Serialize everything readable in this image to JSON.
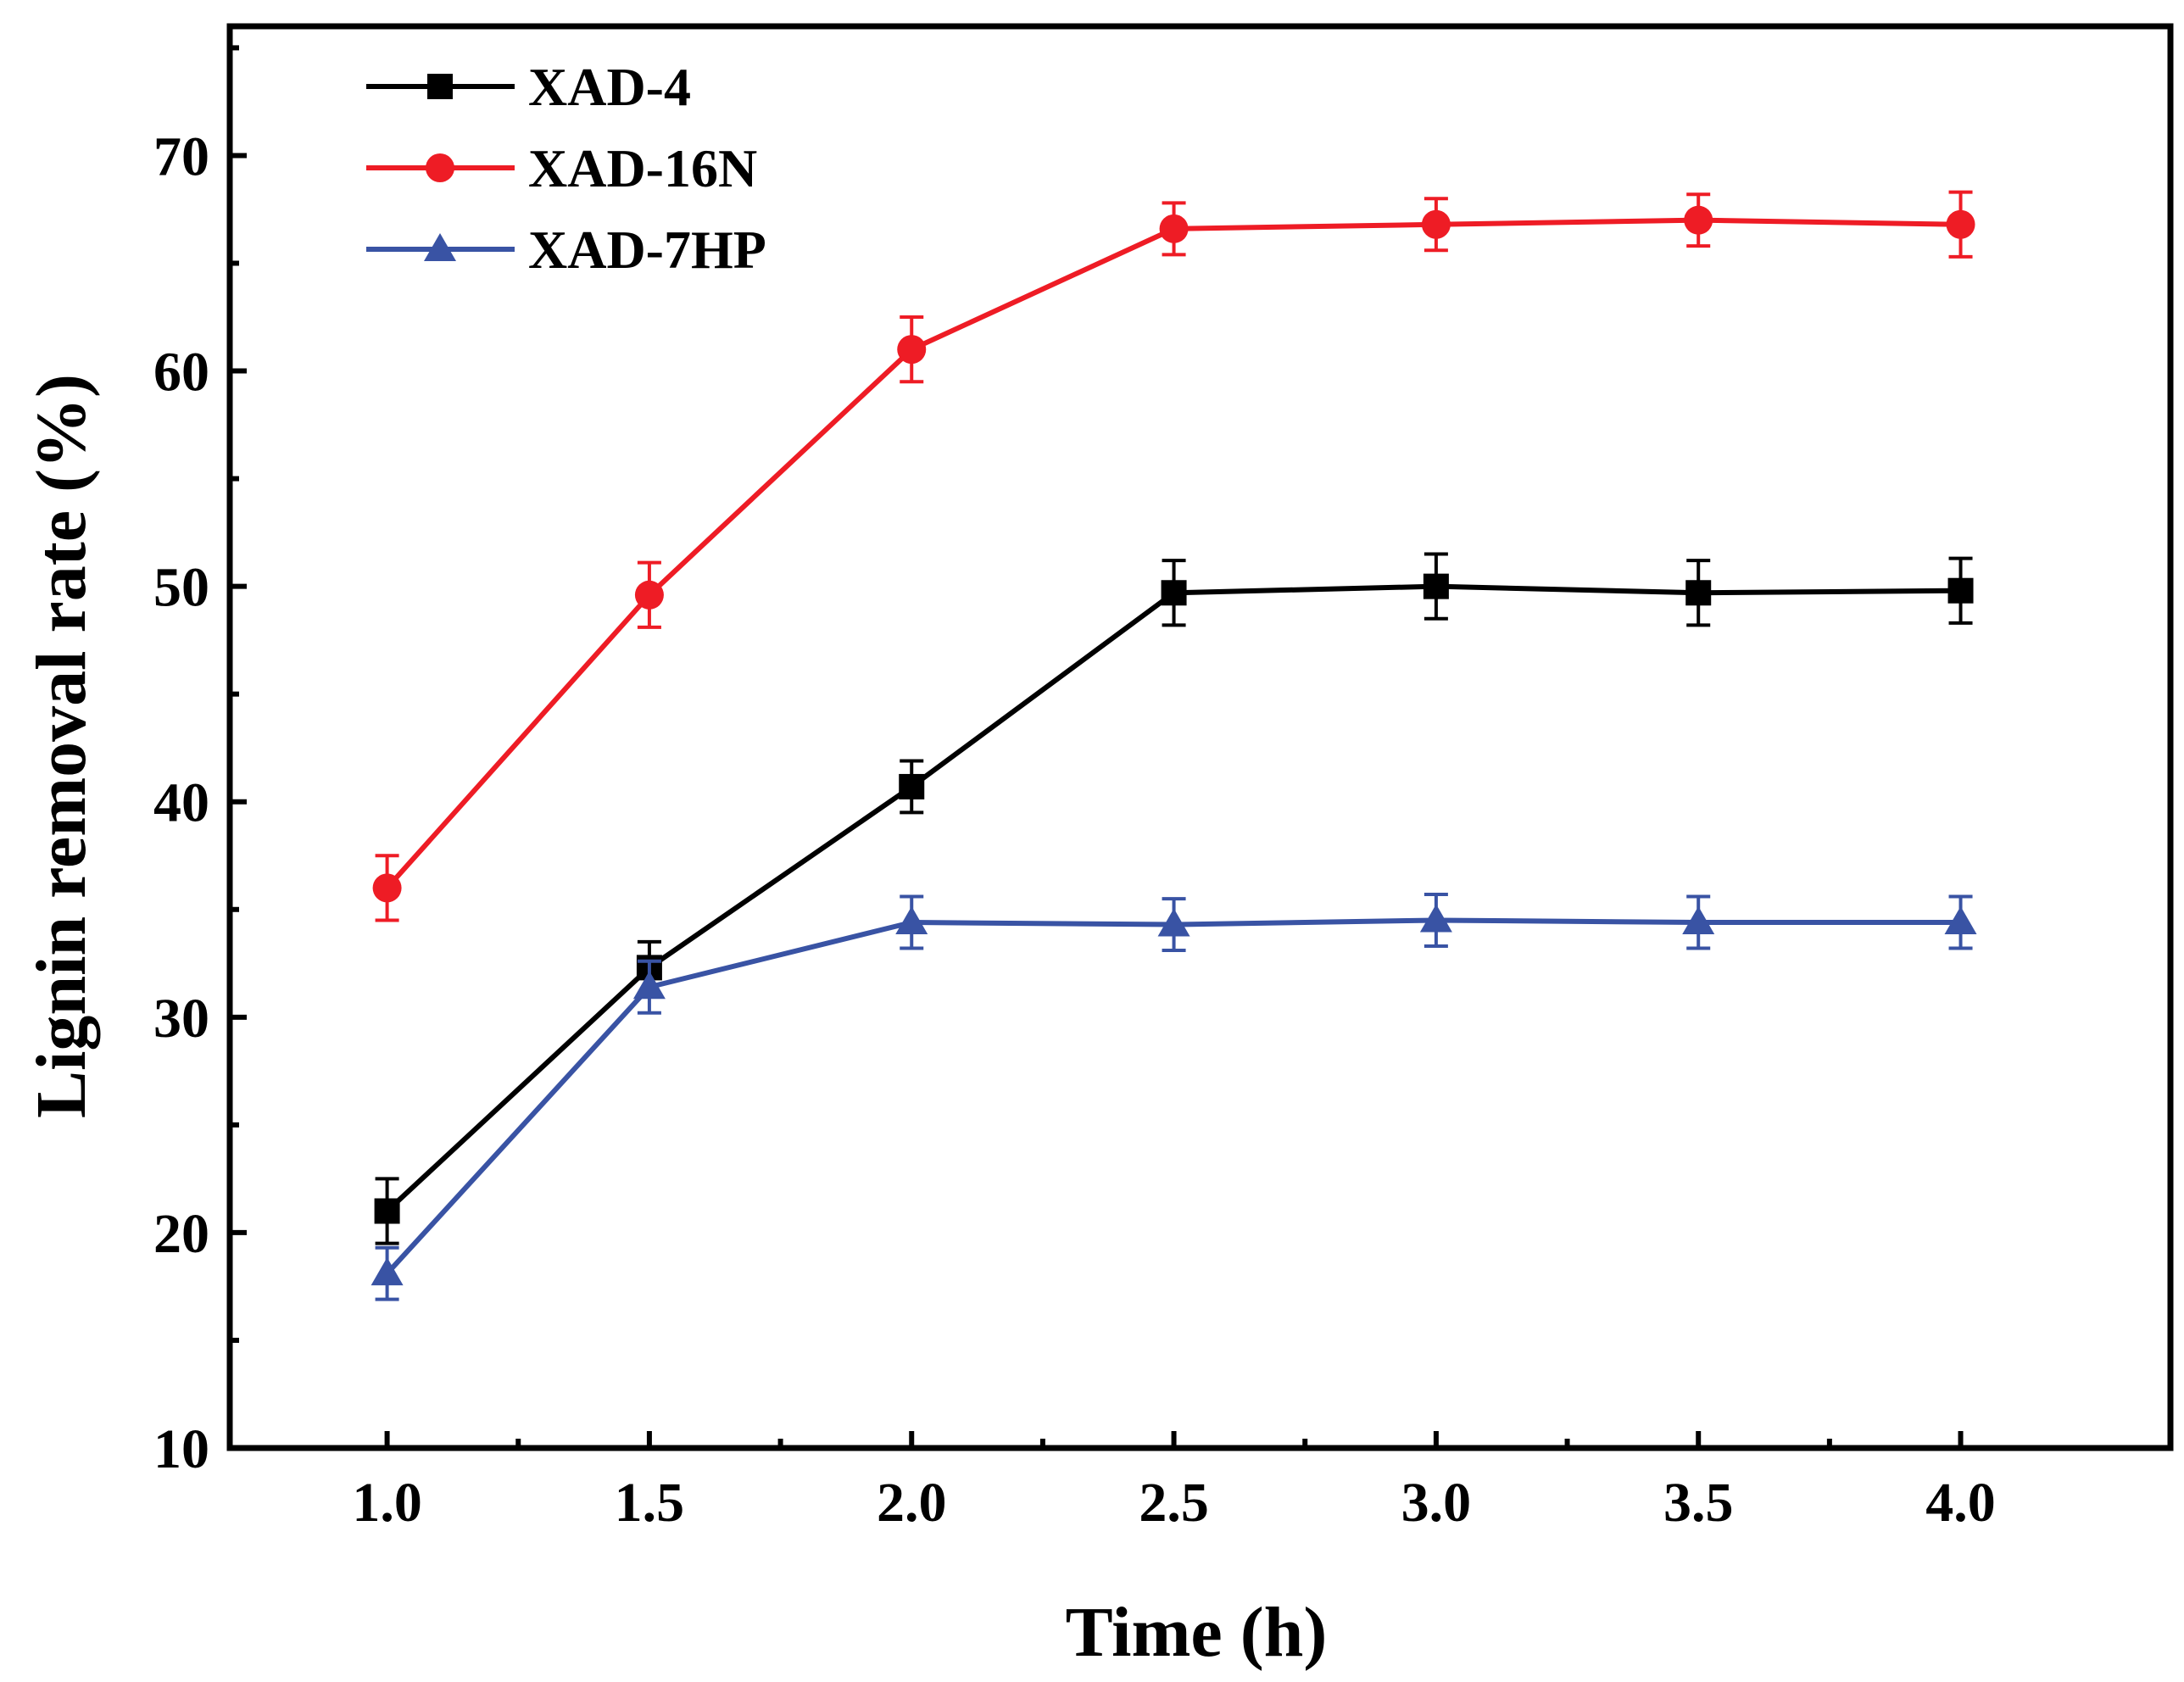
{
  "chart_data": {
    "type": "line",
    "title": "",
    "xlabel": "Time (h)",
    "ylabel": "Lignin removal rate (%)",
    "xlim": [
      0.7,
      4.4
    ],
    "ylim": [
      10,
      76
    ],
    "xticks": [
      1.0,
      1.5,
      2.0,
      2.5,
      3.0,
      3.5,
      4.0
    ],
    "xtick_labels": [
      "1.0",
      "1.5",
      "2.0",
      "2.5",
      "3.0",
      "3.5",
      "4.0"
    ],
    "yticks": [
      10,
      20,
      30,
      40,
      50,
      60,
      70
    ],
    "ytick_labels": [
      "10",
      "20",
      "30",
      "40",
      "50",
      "60",
      "70"
    ],
    "legend_position": "top-left",
    "grid": false,
    "x": [
      1.0,
      1.5,
      2.0,
      2.5,
      3.0,
      3.5,
      4.0
    ],
    "series": [
      {
        "name": "XAD-4",
        "color": "#000000",
        "marker": "square",
        "values": [
          21.0,
          32.3,
          40.7,
          49.7,
          50.0,
          49.7,
          49.8
        ],
        "errors": [
          1.5,
          1.2,
          1.2,
          1.5,
          1.5,
          1.5,
          1.5
        ]
      },
      {
        "name": "XAD-16N",
        "color": "#ee1c25",
        "marker": "circle",
        "values": [
          36.0,
          49.6,
          61.0,
          66.6,
          66.8,
          67.0,
          66.8
        ],
        "errors": [
          1.5,
          1.5,
          1.5,
          1.2,
          1.2,
          1.2,
          1.5
        ]
      },
      {
        "name": "XAD-7HP",
        "color": "#3953a4",
        "marker": "triangle",
        "values": [
          18.1,
          31.4,
          34.4,
          34.3,
          34.5,
          34.4,
          34.4
        ],
        "errors": [
          1.2,
          1.2,
          1.2,
          1.2,
          1.2,
          1.2,
          1.2
        ]
      }
    ]
  }
}
